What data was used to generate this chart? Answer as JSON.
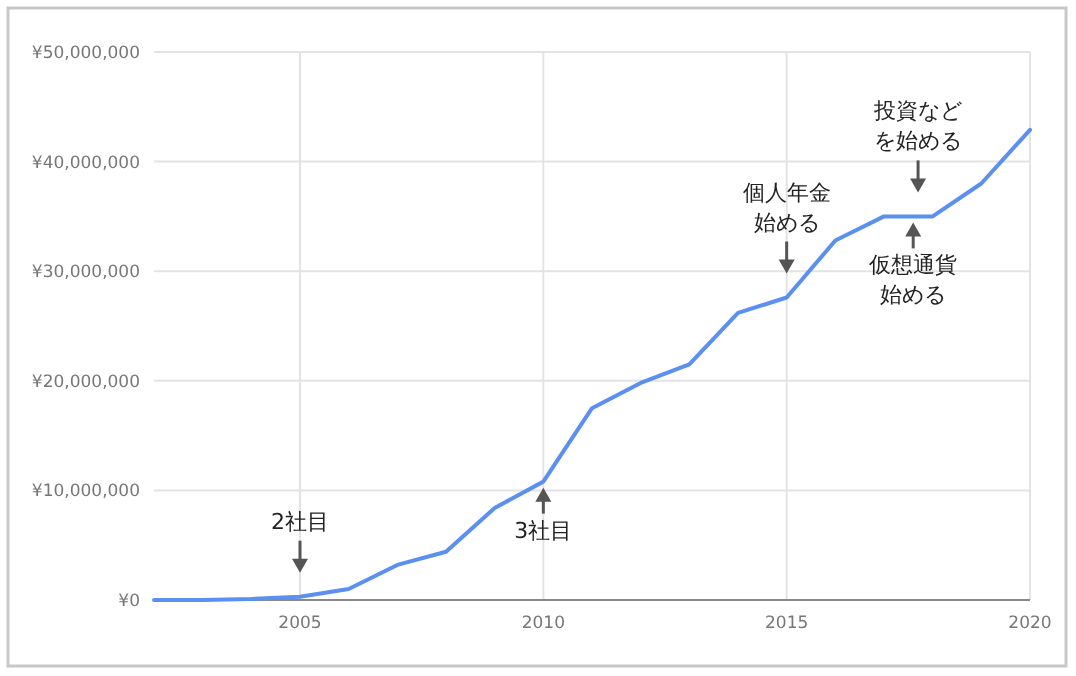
{
  "chart_data": {
    "type": "line",
    "x": [
      2002,
      2003,
      2004,
      2005,
      2006,
      2007,
      2008,
      2009,
      2010,
      2011,
      2012,
      2013,
      2014,
      2015,
      2016,
      2017,
      2018,
      2019,
      2020
    ],
    "series": [
      {
        "color": "#5b8ff0",
        "values": [
          0,
          0,
          100000,
          300000,
          1000000,
          3200000,
          4400000,
          8400000,
          10800000,
          17500000,
          19800000,
          21500000,
          26200000,
          27600000,
          32800000,
          35000000,
          35000000,
          38000000,
          42900000
        ]
      }
    ],
    "xlim": [
      2002,
      2020
    ],
    "xticks": [
      2005,
      2010,
      2015,
      2020
    ],
    "ylim": [
      0,
      50000000
    ],
    "yticks": [
      {
        "value": 0,
        "label": "¥0"
      },
      {
        "value": 10000000,
        "label": "¥10,000,000"
      },
      {
        "value": 20000000,
        "label": "¥20,000,000"
      },
      {
        "value": 30000000,
        "label": "¥30,000,000"
      },
      {
        "value": 40000000,
        "label": "¥40,000,000"
      },
      {
        "value": 50000000,
        "label": "¥50,000,000"
      }
    ],
    "grid": true,
    "line_style": "solid",
    "marker": "none",
    "annotations": [
      {
        "text": "2社目",
        "x": 2005,
        "y": 300000
      },
      {
        "text": "3社目",
        "x": 2010,
        "y": 10800000
      },
      {
        "text": "個人年金始める",
        "x": 2015,
        "y": 27600000
      },
      {
        "text": "投資などを始める",
        "x": 2017.7,
        "y": 35000000
      },
      {
        "text": "仮想通貨始める",
        "x": 2017.6,
        "y": 35000000
      }
    ]
  }
}
